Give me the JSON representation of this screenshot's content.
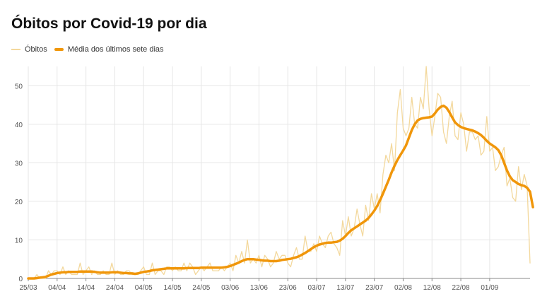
{
  "chart_data": {
    "type": "line",
    "title": "Óbitos por Covid-19 por dia",
    "xlabel": "",
    "ylabel": "",
    "ylim": [
      0,
      55
    ],
    "yticks": [
      0,
      10,
      20,
      30,
      40,
      50
    ],
    "grid": true,
    "legend": "top-left",
    "x_start": "25/03",
    "xtick_labels": [
      "25/03",
      "04/04",
      "14/04",
      "24/04",
      "04/05",
      "14/05",
      "24/05",
      "03/06",
      "13/06",
      "23/06",
      "03/07",
      "13/07",
      "23/07",
      "02/08",
      "12/08",
      "22/08",
      "01/09"
    ],
    "series": [
      {
        "name": "Óbitos",
        "color": "#f3d89c",
        "style": "thin",
        "values": [
          0,
          0,
          0,
          1,
          0,
          0,
          0,
          2,
          1,
          2,
          2,
          1,
          3,
          1,
          2,
          1,
          1,
          1,
          4,
          1,
          2,
          3,
          1,
          2,
          1,
          1,
          2,
          1,
          1,
          4,
          1,
          2,
          1,
          1,
          2,
          2,
          1,
          1,
          1,
          2,
          3,
          1,
          1,
          4,
          1,
          2,
          2,
          1,
          3,
          3,
          2,
          3,
          2,
          2,
          4,
          2,
          4,
          3,
          1,
          2,
          3,
          2,
          3,
          4,
          2,
          2,
          2,
          3,
          2,
          3,
          4,
          2,
          6,
          4,
          7,
          4,
          10,
          4,
          5,
          4,
          6,
          3,
          6,
          5,
          3,
          4,
          7,
          5,
          6,
          6,
          4,
          3,
          6,
          8,
          5,
          5,
          11,
          7,
          7,
          9,
          7,
          11,
          9,
          8,
          11,
          12,
          9,
          8,
          6,
          15,
          11,
          16,
          11,
          13,
          18,
          14,
          11,
          19,
          15,
          22,
          18,
          22,
          17,
          27,
          32,
          30,
          35,
          28,
          43,
          49,
          39,
          37,
          39,
          47,
          40,
          39,
          47,
          44,
          55,
          44,
          37,
          42,
          48,
          47,
          38,
          35,
          42,
          46,
          37,
          36,
          43,
          40,
          33,
          38,
          38,
          36,
          37,
          32,
          33,
          42,
          33,
          34,
          28,
          29,
          32,
          34,
          24,
          26,
          21,
          20,
          29,
          23,
          27,
          24,
          4
        ]
      },
      {
        "name": "Média dos últimos sete dias",
        "color": "#f0960a",
        "style": "thick",
        "values": [
          0,
          0,
          0,
          0.1,
          0.2,
          0.3,
          0.4,
          0.7,
          1,
          1.2,
          1.4,
          1.5,
          1.6,
          1.6,
          1.7,
          1.7,
          1.7,
          1.7,
          1.8,
          1.8,
          1.8,
          1.8,
          1.8,
          1.7,
          1.6,
          1.5,
          1.5,
          1.5,
          1.5,
          1.6,
          1.6,
          1.6,
          1.5,
          1.4,
          1.4,
          1.3,
          1.3,
          1.2,
          1.3,
          1.5,
          1.7,
          1.8,
          1.9,
          2.1,
          2.2,
          2.3,
          2.4,
          2.5,
          2.6,
          2.6,
          2.6,
          2.6,
          2.6,
          2.6,
          2.6,
          2.7,
          2.7,
          2.7,
          2.7,
          2.7,
          2.8,
          2.8,
          2.8,
          2.8,
          2.8,
          2.8,
          2.8,
          2.8,
          2.9,
          3,
          3.2,
          3.5,
          3.8,
          4.1,
          4.5,
          4.8,
          5,
          5,
          5,
          4.9,
          4.8,
          4.7,
          4.6,
          4.6,
          4.5,
          4.5,
          4.5,
          4.6,
          4.8,
          4.9,
          5,
          5.1,
          5.3,
          5.5,
          5.8,
          6.2,
          6.6,
          7.1,
          7.6,
          8.1,
          8.5,
          8.8,
          9,
          9.2,
          9.3,
          9.3,
          9.4,
          9.5,
          9.8,
          10.3,
          11,
          11.8,
          12.5,
          13,
          13.5,
          14,
          14.5,
          15,
          15.7,
          16.6,
          17.6,
          18.8,
          20.3,
          22,
          23.8,
          25.6,
          27.5,
          29.2,
          30.7,
          32,
          33.2,
          34.5,
          36.5,
          38.5,
          40,
          41,
          41.4,
          41.6,
          41.7,
          41.8,
          42,
          42.8,
          43.8,
          44.5,
          44.8,
          44.3,
          43.2,
          41.8,
          40.5,
          39.8,
          39.3,
          39,
          38.8,
          38.6,
          38.4,
          38.1,
          37.7,
          37.2,
          36.5,
          35.7,
          35,
          34.5,
          34,
          33.3,
          32,
          30,
          28,
          26.5,
          25.5,
          25,
          24.5,
          24.2,
          24,
          23.5,
          22.5,
          18.5
        ]
      }
    ]
  }
}
